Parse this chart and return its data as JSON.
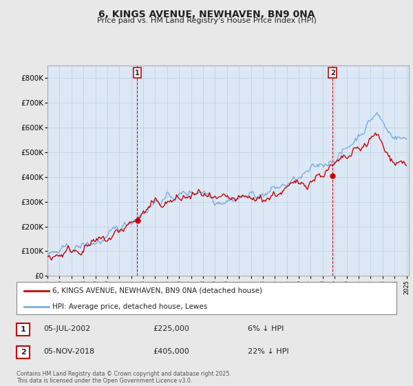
{
  "title": "6, KINGS AVENUE, NEWHAVEN, BN9 0NA",
  "subtitle": "Price paid vs. HM Land Registry's House Price Index (HPI)",
  "legend_line1": "6, KINGS AVENUE, NEWHAVEN, BN9 0NA (detached house)",
  "legend_line2": "HPI: Average price, detached house, Lewes",
  "footnote": "Contains HM Land Registry data © Crown copyright and database right 2025.\nThis data is licensed under the Open Government Licence v3.0.",
  "annotation1": {
    "label": "1",
    "date": "05-JUL-2002",
    "price": "£225,000",
    "pct": "6% ↓ HPI"
  },
  "annotation2": {
    "label": "2",
    "date": "05-NOV-2018",
    "price": "£405,000",
    "pct": "22% ↓ HPI"
  },
  "vline1_x": 2002.5,
  "vline2_x": 2018.83,
  "purchase1_y": 225000,
  "purchase2_y": 405000,
  "red_color": "#cc0000",
  "blue_color": "#7aade0",
  "vline_color": "#cc0000",
  "background_color": "#e8e8e8",
  "plot_bg_color": "#dce8f5",
  "ylim": [
    0,
    850000
  ],
  "yticks": [
    0,
    100000,
    200000,
    300000,
    400000,
    500000,
    600000,
    700000,
    800000
  ],
  "ytick_labels": [
    "£0",
    "£100K",
    "£200K",
    "£300K",
    "£400K",
    "£500K",
    "£600K",
    "£700K",
    "£800K"
  ],
  "xlim_start": 1995.5,
  "xlim_end": 2025.2
}
